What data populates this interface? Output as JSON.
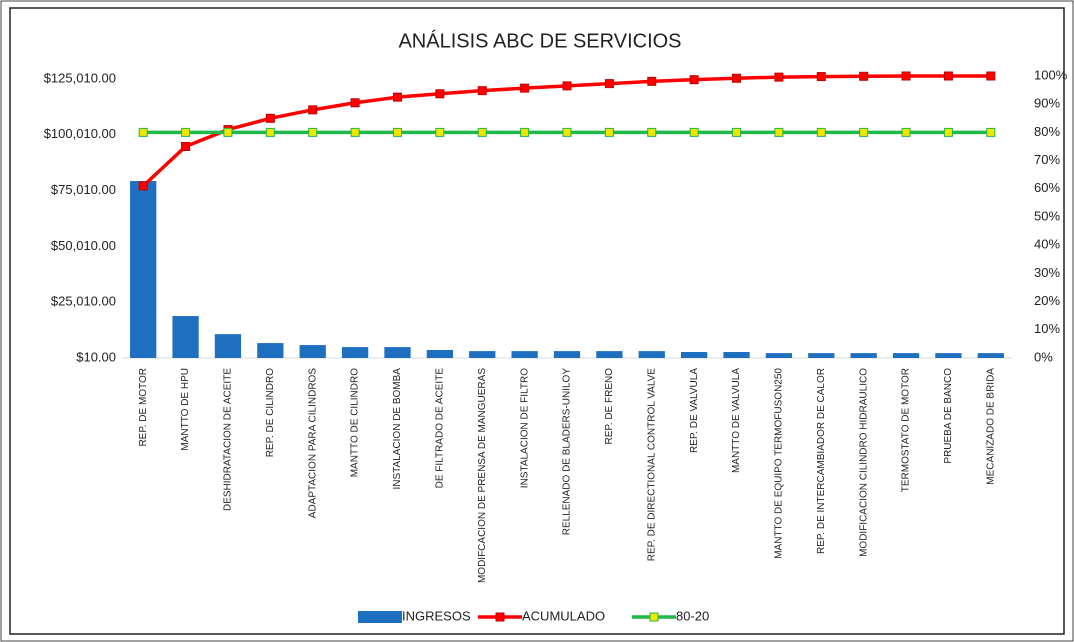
{
  "chart_data": {
    "type": "bar",
    "title": "ANÁLISIS ABC DE SERVICIOS",
    "categories": [
      "REP. DE MOTOR",
      "MANTTO DE HPU",
      "DESHIDRATACION DE ACEITE",
      "REP. DE CILINDRO",
      "ADAPTACION PARA CILINDROS",
      "MANTTO DE CILINDRO",
      "INSTALACION DE BOMBA",
      "DE FILTRADO DE ACEITE",
      "MODIFCACION DE PRENSA DE MANGUERAS",
      "INSTALACION DE FILTRO",
      "RELLENADO DE BLADERS-UNILOY",
      "REP. DE FRENO",
      "REP. DE DIRECTIONAL CONTROL VALVE",
      "REP. DE VALVULA",
      "MANTTO DE VALVULA",
      "MANTTO DE EQUIPO TERMOFUSON250",
      "REP. DE INTERCAMBIADOR DE CALOR",
      "MODIFICACION CILINDRO HIDRAULICO",
      "TERMOSTATO DE MOTOR",
      "PRUEBA DE BANCO",
      "MECANIZADO DE BRIDA"
    ],
    "series": [
      {
        "name": "INGRESOS",
        "type": "bar",
        "color": "#1f6fc0",
        "values": [
          79300,
          18800,
          10700,
          6700,
          5800,
          4900,
          4900,
          3600,
          3100,
          3100,
          3100,
          3100,
          3100,
          2700,
          2700,
          2200,
          2200,
          2200,
          2200,
          2200,
          2200
        ]
      },
      {
        "name": "ACUMULADO",
        "type": "line",
        "axis": "y2",
        "color": "#ff0000",
        "marker_color": "#ff0000",
        "marker_edge": "#c00000",
        "values": [
          61,
          75,
          81,
          85,
          88,
          90.5,
          92.5,
          93.7,
          94.8,
          95.7,
          96.5,
          97.3,
          98.1,
          98.7,
          99.2,
          99.6,
          99.8,
          99.9,
          100,
          100,
          100
        ]
      },
      {
        "name": "80-20",
        "type": "line",
        "axis": "y2",
        "color": "#1fb84a",
        "marker_color": "#f2e600",
        "marker_edge": "#1fb84a",
        "values": [
          80,
          80,
          80,
          80,
          80,
          80,
          80,
          80,
          80,
          80,
          80,
          80,
          80,
          80,
          80,
          80,
          80,
          80,
          80,
          80,
          80
        ]
      }
    ],
    "ylim": [
      10,
      125010
    ],
    "yticks": [
      {
        "value": 10,
        "label": "$10.00"
      },
      {
        "value": 25010,
        "label": "$25,010.00"
      },
      {
        "value": 50010,
        "label": "$50,010.00"
      },
      {
        "value": 75010,
        "label": "$75,010.00"
      },
      {
        "value": 100010,
        "label": "$100,010.00"
      },
      {
        "value": 125010,
        "label": "$125,010.00"
      }
    ],
    "y2lim": [
      0,
      100
    ],
    "y2ticks": [
      {
        "value": 0,
        "label": "0%"
      },
      {
        "value": 10,
        "label": "10%"
      },
      {
        "value": 20,
        "label": "20%"
      },
      {
        "value": 30,
        "label": "30%"
      },
      {
        "value": 40,
        "label": "40%"
      },
      {
        "value": 50,
        "label": "50%"
      },
      {
        "value": 60,
        "label": "60%"
      },
      {
        "value": 70,
        "label": "70%"
      },
      {
        "value": 80,
        "label": "80%"
      },
      {
        "value": 90,
        "label": "90%"
      },
      {
        "value": 100,
        "label": "100%"
      }
    ],
    "legend": "bottom"
  }
}
